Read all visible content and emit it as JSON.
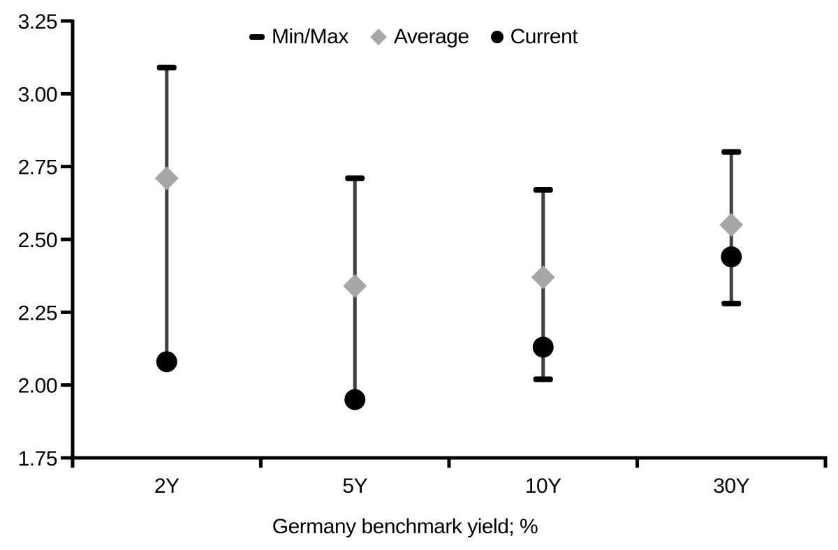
{
  "chart_data": {
    "type": "scatter",
    "subtype": "min-max-range-with-markers",
    "title": "",
    "xlabel": "Germany benchmark yield; %",
    "ylabel": "",
    "categories": [
      "2Y",
      "5Y",
      "10Y",
      "30Y"
    ],
    "series": [
      {
        "name": "Min/Max",
        "type": "range",
        "marker": "dash",
        "max": [
          3.09,
          2.71,
          2.67,
          2.8
        ],
        "min": [
          2.08,
          1.95,
          2.02,
          2.28
        ]
      },
      {
        "name": "Average",
        "type": "point",
        "marker": "diamond",
        "values": [
          2.71,
          2.34,
          2.37,
          2.55
        ]
      },
      {
        "name": "Current",
        "type": "point",
        "marker": "circle",
        "values": [
          2.08,
          1.95,
          2.13,
          2.44
        ]
      }
    ],
    "y_axis": {
      "min": 1.75,
      "max": 3.25,
      "step": 0.25,
      "tick_labels": [
        "3.25",
        "3.00",
        "2.75",
        "2.50",
        "2.25",
        "2.00",
        "1.75"
      ]
    },
    "x_axis": {
      "tick_labels": [
        "2Y",
        "5Y",
        "10Y",
        "30Y"
      ]
    },
    "legend": {
      "position": "top-center",
      "items": [
        {
          "label": "Min/Max",
          "marker": "dash",
          "color": "#000000"
        },
        {
          "label": "Average",
          "marker": "diamond",
          "color": "#a6a6a6"
        },
        {
          "label": "Current",
          "marker": "circle",
          "color": "#000000"
        }
      ]
    },
    "grid": "off",
    "colors": {
      "axis": "#000000",
      "whisker": "#404040",
      "cap": "#000000",
      "average": "#a6a6a6",
      "current": "#000000",
      "text": "#000000",
      "background": "#ffffff"
    }
  }
}
